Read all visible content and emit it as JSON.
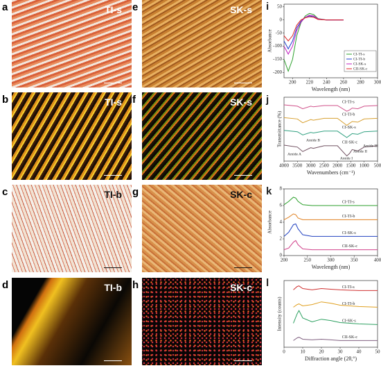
{
  "micrographs": [
    {
      "label": "a",
      "caption": "TI-s"
    },
    {
      "label": "b",
      "caption": "TI-s"
    },
    {
      "label": "c",
      "caption": "TI-b"
    },
    {
      "label": "d",
      "caption": "TI-b"
    },
    {
      "label": "e",
      "caption": "SK-s"
    },
    {
      "label": "f",
      "caption": "SK-s"
    },
    {
      "label": "g",
      "caption": "SK-c"
    },
    {
      "label": "h",
      "caption": "SK-c"
    }
  ],
  "chart_data": [
    {
      "type": "line",
      "panel_label": "i",
      "xlabel": "Wavelength (nm)",
      "ylabel": "Absorbance",
      "x": [
        190,
        195,
        200,
        205,
        210,
        215,
        220,
        225,
        230,
        240,
        250,
        260
      ],
      "xlim": [
        190,
        300
      ],
      "xticks": [
        200,
        220,
        240,
        260,
        280,
        300
      ],
      "ylim": [
        -220,
        60
      ],
      "yticks": [
        -200,
        -150,
        -100,
        -50,
        0,
        50
      ],
      "legend": "lower right",
      "series": [
        {
          "name": "CI-TI-s",
          "color": "#2ca02c",
          "values": [
            -150,
            -195,
            -150,
            -60,
            -10,
            15,
            25,
            20,
            5,
            0,
            0,
            0
          ]
        },
        {
          "name": "CI-TI-b",
          "color": "#1f3fcf",
          "values": [
            -80,
            -110,
            -80,
            -30,
            -5,
            10,
            15,
            12,
            3,
            0,
            0,
            0
          ]
        },
        {
          "name": "CI-SK-s",
          "color": "#c020c0",
          "values": [
            -100,
            -130,
            -100,
            -40,
            -8,
            10,
            18,
            15,
            4,
            0,
            0,
            0
          ]
        },
        {
          "name": "CII-SK-c",
          "color": "#e02020",
          "values": [
            -60,
            -80,
            -60,
            -20,
            0,
            8,
            12,
            10,
            2,
            0,
            0,
            0
          ]
        }
      ]
    },
    {
      "type": "line",
      "panel_label": "j",
      "xlabel": "Wavenumbers (cm⁻¹)",
      "ylabel": "Transmittance (%)",
      "x": [
        4000,
        3500,
        3300,
        3000,
        2900,
        2500,
        2000,
        1650,
        1550,
        1450,
        1240,
        1000,
        500
      ],
      "xlim": [
        4000,
        500
      ],
      "xticks": [
        4000,
        3500,
        3000,
        2500,
        2000,
        1500,
        1000,
        500
      ],
      "ylim": [
        0,
        100
      ],
      "legend": "inline",
      "annotations": [
        "Amide A",
        "Amide B",
        "Amide I",
        "Amide II",
        "Amide III"
      ],
      "series": [
        {
          "name": "CI-TI-s",
          "color": "#d0508a",
          "values": [
            88,
            86,
            82,
            86,
            85,
            87,
            87,
            78,
            80,
            83,
            82,
            86,
            87
          ]
        },
        {
          "name": "CI-TI-b",
          "color": "#d8a030",
          "values": [
            68,
            66,
            60,
            65,
            64,
            67,
            67,
            56,
            59,
            62,
            61,
            66,
            67
          ]
        },
        {
          "name": "CI-SK-s",
          "color": "#30a080",
          "values": [
            48,
            46,
            41,
            45,
            44,
            47,
            47,
            37,
            40,
            43,
            42,
            46,
            47
          ]
        },
        {
          "name": "CII-SK-c",
          "color": "#705060",
          "values": [
            25,
            22,
            15,
            21,
            20,
            24,
            24,
            8,
            12,
            18,
            16,
            22,
            24
          ]
        }
      ]
    },
    {
      "type": "line",
      "panel_label": "k",
      "xlabel": "Wavelength (nm)",
      "ylabel": "Absorbance",
      "x": [
        200,
        210,
        220,
        225,
        230,
        240,
        260,
        300,
        350,
        400
      ],
      "xlim": [
        200,
        400
      ],
      "xticks": [
        200,
        250,
        300,
        350,
        400
      ],
      "ylim": [
        0,
        8
      ],
      "yticks": [
        0,
        2,
        4,
        6,
        8
      ],
      "legend": "inline",
      "series": [
        {
          "name": "CI-TI-s",
          "color": "#2ca02c",
          "values": [
            6.1,
            6.5,
            7.0,
            6.9,
            6.5,
            6.1,
            6.0,
            6.0,
            6.0,
            6.0
          ]
        },
        {
          "name": "CI-TI-b",
          "color": "#e08020",
          "values": [
            4.3,
            4.6,
            5.0,
            4.9,
            4.5,
            4.3,
            4.3,
            4.3,
            4.3,
            4.3
          ]
        },
        {
          "name": "CI-SK-s",
          "color": "#2040c0",
          "values": [
            2.3,
            2.8,
            3.7,
            3.8,
            3.2,
            2.5,
            2.3,
            2.3,
            2.3,
            2.3
          ]
        },
        {
          "name": "CII-SK-c",
          "color": "#d0408a",
          "values": [
            0.7,
            0.9,
            1.6,
            1.8,
            1.3,
            0.8,
            0.7,
            0.7,
            0.7,
            0.7
          ]
        }
      ]
    },
    {
      "type": "line",
      "panel_label": "l",
      "xlabel": "Diffraction angle (2θ,°)",
      "ylabel": "Intensity (counts)",
      "x": [
        5,
        7,
        8,
        10,
        15,
        20,
        25,
        30,
        40,
        50
      ],
      "xlim": [
        0,
        50
      ],
      "xticks": [
        0,
        10,
        20,
        30,
        40,
        50
      ],
      "ylim": [
        0,
        100
      ],
      "legend": "inline",
      "series": [
        {
          "name": "CI-TI-s",
          "color": "#d03030",
          "values": [
            86,
            91,
            92,
            88,
            86,
            88,
            87,
            86,
            85,
            85
          ]
        },
        {
          "name": "CI-TI-b",
          "color": "#e0a020",
          "values": [
            60,
            64,
            65,
            62,
            64,
            68,
            66,
            63,
            61,
            60
          ]
        },
        {
          "name": "CI-SK-s",
          "color": "#2ca060",
          "values": [
            36,
            50,
            55,
            44,
            38,
            42,
            40,
            37,
            35,
            34
          ]
        },
        {
          "name": "CII-SK-c",
          "color": "#806080",
          "values": [
            10,
            14,
            15,
            12,
            11,
            12,
            11,
            10,
            10,
            10
          ]
        }
      ]
    }
  ]
}
